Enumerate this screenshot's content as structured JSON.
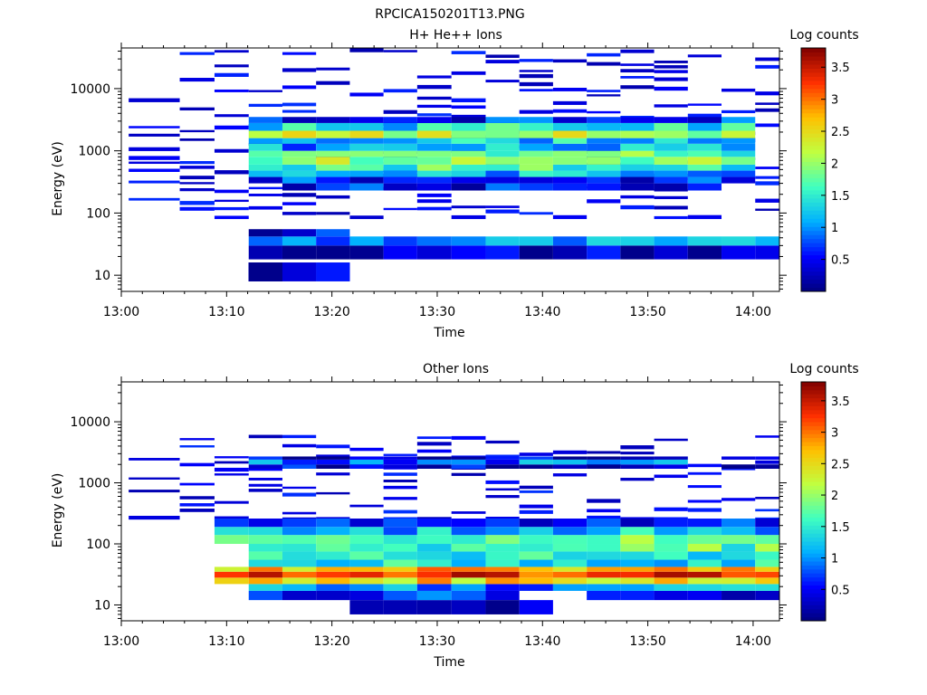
{
  "figure_title": "RPCICA150201T13.PNG",
  "colors": {
    "colormap": [
      "#00007f",
      "#0000ff",
      "#00b0ff",
      "#40ffc0",
      "#c0ff40",
      "#ffc000",
      "#ff3000",
      "#7f0000"
    ]
  },
  "chart_data": [
    {
      "type": "heatmap",
      "title": "H+ He++ Ions",
      "xlabel": "Time",
      "ylabel": "Energy (eV)",
      "colorbar_label": "Log counts",
      "x_ticks": [
        "13:00",
        "13:10",
        "13:20",
        "13:30",
        "13:40",
        "13:50",
        "14:00"
      ],
      "x_range_minutes": [
        0,
        62.5
      ],
      "y_scale": "log",
      "y_ticks": [
        10,
        100,
        1000,
        10000
      ],
      "y_tick_labels": [
        "10",
        "100",
        "1000",
        "10000"
      ],
      "ylim": [
        5.5,
        45000
      ],
      "c_range": [
        0,
        3.8
      ],
      "c_ticks": [
        0.5,
        1,
        1.5,
        2,
        2.5,
        3,
        3.5
      ],
      "c_tick_labels": [
        "0.5",
        "1",
        "1.5",
        "2",
        "2.5",
        "3",
        "3.5"
      ],
      "time_bins_min": [
        3.9,
        7.2,
        10.5,
        13.7,
        16.9,
        20.1,
        23.3,
        26.5,
        29.7,
        33.0,
        36.2,
        39.4,
        42.6,
        45.8,
        49.0,
        52.2,
        55.4,
        58.6,
        61.8
      ],
      "bands": [
        {
          "e_lo": 8,
          "e_hi": 16,
          "cols": [
            4,
            4,
            5,
            3,
            3,
            3,
            3,
            3,
            3,
            3,
            3,
            3,
            3,
            3,
            3,
            3,
            5,
            3,
            3
          ],
          "v": 0.3
        },
        {
          "e_lo": 18,
          "e_hi": 30,
          "cols": [
            3,
            4,
            5,
            6,
            7,
            8,
            9,
            10,
            11,
            12,
            13,
            14,
            15,
            16,
            17,
            18
          ],
          "v": 0.3
        },
        {
          "e_lo": 30,
          "e_hi": 42,
          "cols": [
            3,
            4,
            5,
            6,
            7,
            8,
            9,
            10,
            11,
            12,
            13,
            14,
            15,
            16,
            17,
            18
          ],
          "v": 1.0
        },
        {
          "e_lo": 42,
          "e_hi": 55,
          "cols": [
            3,
            4,
            5
          ],
          "v": 0.4
        },
        {
          "e_lo": 230,
          "e_hi": 300,
          "cols": [
            4,
            5,
            6,
            7,
            8,
            9,
            10,
            11,
            12,
            13,
            14,
            15,
            16
          ],
          "v": 0.5
        },
        {
          "e_lo": 300,
          "e_hi": 380,
          "cols": [
            3,
            4,
            5,
            6,
            7,
            8,
            9,
            10,
            11,
            12,
            13,
            14,
            15,
            16,
            17
          ],
          "v": 0.6
        },
        {
          "e_lo": 380,
          "e_hi": 480,
          "cols": [
            3,
            4,
            5,
            6,
            7,
            8,
            9,
            10,
            11,
            12,
            13,
            14,
            15,
            16,
            17
          ],
          "v": 1.2
        },
        {
          "e_lo": 480,
          "e_hi": 600,
          "cols": [
            3,
            4,
            5,
            6,
            7,
            8,
            9,
            10,
            11,
            12,
            13,
            14,
            15,
            16,
            17
          ],
          "v": 1.6
        },
        {
          "e_lo": 600,
          "e_hi": 800,
          "cols": [
            3,
            4,
            5,
            6,
            7,
            8,
            9,
            10,
            11,
            12,
            13,
            14,
            15,
            16,
            17
          ],
          "v": 2.0
        },
        {
          "e_lo": 800,
          "e_hi": 1000,
          "cols": [
            3,
            4,
            5,
            6,
            7,
            8,
            9,
            10,
            11,
            12,
            13,
            14,
            15,
            16,
            17
          ],
          "v": 1.7
        },
        {
          "e_lo": 1000,
          "e_hi": 1300,
          "cols": [
            3,
            4,
            5,
            6,
            7,
            8,
            9,
            10,
            11,
            12,
            13,
            14,
            15,
            16,
            17
          ],
          "v": 1.1
        },
        {
          "e_lo": 1300,
          "e_hi": 1600,
          "cols": [
            3,
            4,
            5,
            6,
            7,
            8,
            9,
            10,
            11,
            12,
            13,
            14,
            15,
            16,
            17
          ],
          "v": 1.3
        },
        {
          "e_lo": 1600,
          "e_hi": 2100,
          "cols": [
            3,
            4,
            5,
            6,
            7,
            8,
            9,
            10,
            11,
            12,
            13,
            14,
            15,
            16,
            17
          ],
          "v": 2.1
        },
        {
          "e_lo": 2100,
          "e_hi": 2800,
          "cols": [
            3,
            4,
            5,
            6,
            7,
            8,
            9,
            10,
            11,
            12,
            13,
            14,
            15,
            16,
            17
          ],
          "v": 1.4
        },
        {
          "e_lo": 2800,
          "e_hi": 3500,
          "cols": [
            3,
            4,
            5,
            6,
            7,
            8,
            9,
            10,
            11,
            12,
            13,
            14,
            15,
            16,
            17
          ],
          "v": 0.6
        }
      ],
      "sparse": {
        "e_lo": 80,
        "e_hi": 42000,
        "density": 0.4,
        "v": 0.2
      }
    },
    {
      "type": "heatmap",
      "title": "Other Ions",
      "xlabel": "Time",
      "ylabel": "Energy (eV)",
      "colorbar_label": "Log counts",
      "x_ticks": [
        "13:00",
        "13:10",
        "13:20",
        "13:30",
        "13:40",
        "13:50",
        "14:00"
      ],
      "x_range_minutes": [
        0,
        62.5
      ],
      "y_scale": "log",
      "y_ticks": [
        10,
        100,
        1000,
        10000
      ],
      "y_tick_labels": [
        "10",
        "100",
        "1000",
        "10000"
      ],
      "ylim": [
        5.5,
        45000
      ],
      "c_range": [
        0,
        3.8
      ],
      "c_ticks": [
        0.5,
        1,
        1.5,
        2,
        2.5,
        3,
        3.5
      ],
      "c_tick_labels": [
        "0.5",
        "1",
        "1.5",
        "2",
        "2.5",
        "3",
        "3.5"
      ],
      "time_bins_min": [
        3.9,
        7.2,
        10.5,
        13.7,
        16.9,
        20.1,
        23.3,
        26.5,
        29.7,
        33.0,
        36.2,
        39.4,
        42.6,
        45.8,
        49.0,
        52.2,
        55.4,
        58.6,
        61.8
      ],
      "bands": [
        {
          "e_lo": 7,
          "e_hi": 12,
          "cols": [
            6,
            7,
            8,
            9,
            10,
            11
          ],
          "v": 0.2
        },
        {
          "e_lo": 12,
          "e_hi": 17,
          "cols": [
            3,
            4,
            5,
            6,
            7,
            8,
            9,
            10,
            13,
            14,
            15,
            16,
            17,
            18
          ],
          "v": 0.6
        },
        {
          "e_lo": 17,
          "e_hi": 22,
          "cols": [
            3,
            4,
            5,
            6,
            7,
            8,
            9,
            10,
            11,
            12,
            13,
            14,
            15,
            16,
            17,
            18
          ],
          "v": 1.0
        },
        {
          "e_lo": 22,
          "e_hi": 28,
          "cols": [
            2,
            3,
            4,
            5,
            6,
            7,
            8,
            9,
            10,
            11,
            12,
            13,
            14,
            15,
            16,
            17,
            18
          ],
          "v": 2.6
        },
        {
          "e_lo": 28,
          "e_hi": 35,
          "cols": [
            2,
            3,
            4,
            5,
            6,
            7,
            8,
            9,
            10,
            11,
            12,
            13,
            14,
            15,
            16,
            17,
            18
          ],
          "v": 3.3
        },
        {
          "e_lo": 35,
          "e_hi": 42,
          "cols": [
            2,
            3,
            4,
            5,
            6,
            7,
            8,
            9,
            10,
            11,
            12,
            13,
            14,
            15,
            16,
            17,
            18
          ],
          "v": 2.7
        },
        {
          "e_lo": 42,
          "e_hi": 55,
          "cols": [
            3,
            4,
            5,
            6,
            7,
            8,
            9,
            10,
            11,
            12,
            13,
            14,
            15,
            16,
            17,
            18
          ],
          "v": 1.4
        },
        {
          "e_lo": 55,
          "e_hi": 75,
          "cols": [
            3,
            4,
            5,
            6,
            7,
            8,
            9,
            10,
            11,
            12,
            13,
            14,
            15,
            16,
            17,
            18
          ],
          "v": 1.5
        },
        {
          "e_lo": 75,
          "e_hi": 100,
          "cols": [
            3,
            4,
            5,
            6,
            7,
            8,
            9,
            10,
            11,
            12,
            13,
            14,
            15,
            16,
            17,
            18
          ],
          "v": 1.7
        },
        {
          "e_lo": 100,
          "e_hi": 140,
          "cols": [
            2,
            3,
            4,
            5,
            6,
            7,
            8,
            9,
            10,
            11,
            12,
            13,
            14,
            15,
            16,
            17,
            18
          ],
          "v": 1.8
        },
        {
          "e_lo": 140,
          "e_hi": 190,
          "cols": [
            2,
            3,
            4,
            5,
            6,
            7,
            8,
            9,
            10,
            11,
            12,
            13,
            14,
            15,
            16,
            17,
            18
          ],
          "v": 1.2
        },
        {
          "e_lo": 190,
          "e_hi": 260,
          "cols": [
            2,
            3,
            4,
            5,
            6,
            7,
            8,
            9,
            10,
            11,
            12,
            13,
            14,
            15,
            16,
            17,
            18
          ],
          "v": 0.5
        },
        {
          "e_lo": 1700,
          "e_hi": 2000,
          "cols": [
            3,
            4,
            5,
            6,
            7,
            8,
            9,
            10,
            11,
            12,
            13,
            14,
            15,
            17,
            18
          ],
          "v": 0.4
        },
        {
          "e_lo": 2000,
          "e_hi": 2400,
          "cols": [
            3,
            4,
            5,
            6,
            7,
            8,
            9,
            10,
            11,
            12,
            13,
            14,
            15
          ],
          "v": 0.9
        },
        {
          "e_lo": 2400,
          "e_hi": 2700,
          "cols": [
            3,
            4,
            5,
            6,
            7,
            8,
            9,
            10,
            11,
            12,
            13,
            14,
            15,
            17,
            18
          ],
          "v": 0.3
        }
      ],
      "sparse": {
        "e_lo": 250,
        "e_hi": 5500,
        "density": 0.35,
        "v": 0.2
      }
    }
  ]
}
